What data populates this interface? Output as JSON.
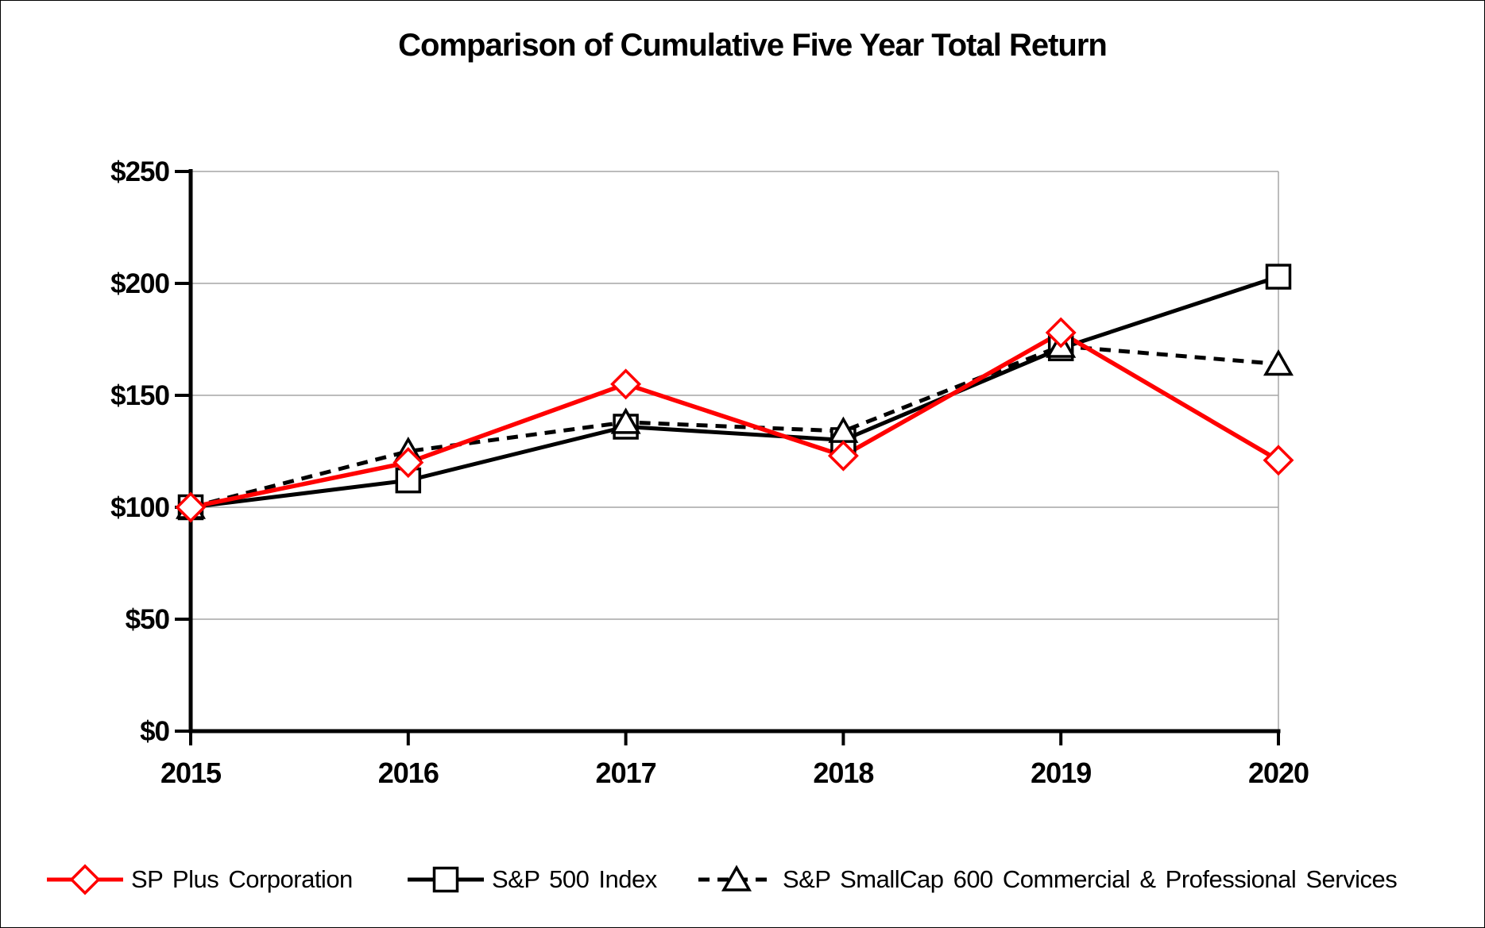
{
  "chart_data": {
    "type": "line",
    "title": "Comparison of Cumulative Five Year Total Return",
    "categories": [
      "2015",
      "2016",
      "2017",
      "2018",
      "2019",
      "2020"
    ],
    "series": [
      {
        "name": "SP Plus Corporation",
        "values": [
          100,
          120,
          155,
          123,
          178,
          121
        ],
        "color": "#FF0000",
        "marker": "diamond",
        "line_style": "solid"
      },
      {
        "name": "S&P 500 Index",
        "values": [
          100,
          112,
          136,
          130,
          171,
          203
        ],
        "color": "#000000",
        "marker": "square",
        "line_style": "solid"
      },
      {
        "name": "S&P SmallCap 600 Commercial & Professional Services",
        "values": [
          100,
          125,
          138,
          134,
          172,
          164
        ],
        "color": "#000000",
        "marker": "triangle",
        "line_style": "dashed"
      }
    ],
    "ytick_values": [
      0,
      50,
      100,
      150,
      200,
      250
    ],
    "ytick_labels": [
      "$0",
      "$50",
      "$100",
      "$150",
      "$200",
      "$250"
    ],
    "ylim": [
      0,
      250
    ],
    "grid": true,
    "legend_position": "bottom",
    "axis_color": "#000000",
    "gridline_color": "#A6A6A6",
    "marker_fill": "#FFFFFF",
    "background": "#FFFFFF"
  }
}
